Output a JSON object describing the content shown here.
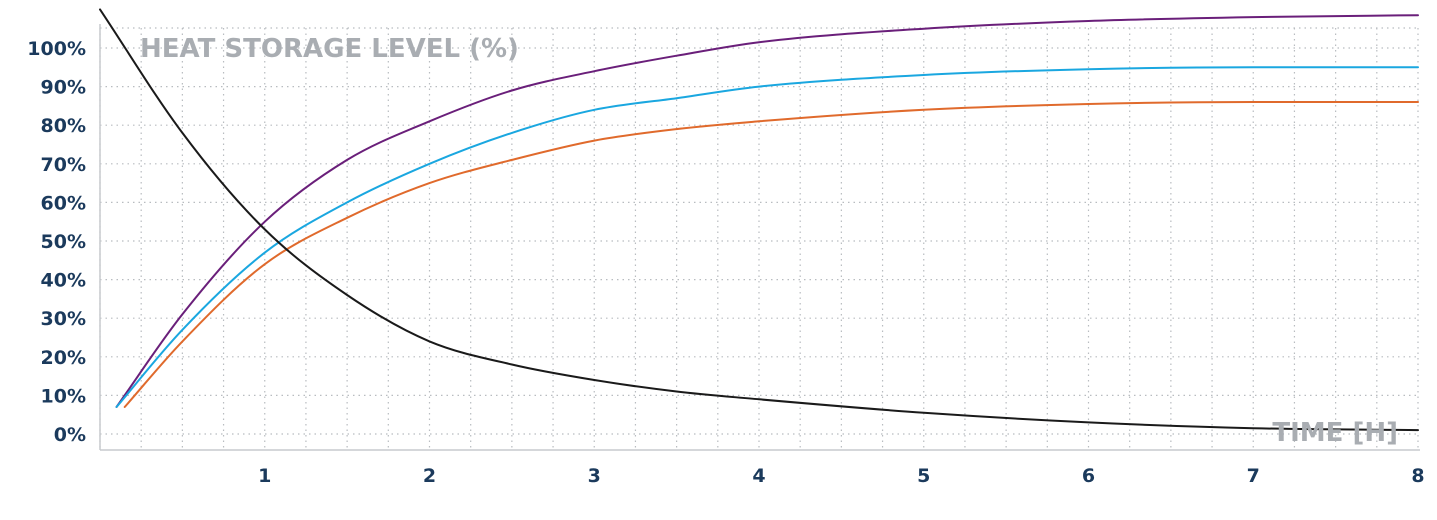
{
  "chart_data": {
    "type": "line",
    "title": "HEAT STORAGE LEVEL (%)",
    "xlabel": "TIME [H]",
    "ylabel": "",
    "x_ticks": [
      "1",
      "2",
      "3",
      "4",
      "5",
      "6",
      "7",
      "8"
    ],
    "y_ticks": [
      "0%",
      "10%",
      "20%",
      "30%",
      "40%",
      "50%",
      "60%",
      "70%",
      "80%",
      "90%",
      "100%"
    ],
    "xlim": [
      0,
      8
    ],
    "ylim": [
      0,
      105
    ],
    "grid": true,
    "legend": "none",
    "series": [
      {
        "color": "#6a1f7a",
        "x": [
          0.1,
          0.5,
          1,
          1.5,
          2,
          2.5,
          3,
          3.5,
          4,
          5,
          6,
          7,
          8
        ],
        "values": [
          7,
          31,
          55,
          71,
          81,
          89,
          94,
          98,
          101.5,
          105,
          107,
          108,
          108.5
        ]
      },
      {
        "color": "#1aa7e0",
        "x": [
          0.1,
          0.5,
          1,
          1.5,
          2,
          2.5,
          3,
          3.5,
          4,
          5,
          6,
          7,
          8
        ],
        "values": [
          7,
          27,
          47,
          60,
          70,
          78,
          84,
          87,
          90,
          93,
          94.5,
          95,
          95
        ]
      },
      {
        "color": "#e06a2c",
        "x": [
          0.15,
          0.5,
          1,
          1.5,
          2,
          2.5,
          3,
          3.5,
          4,
          5,
          6,
          7,
          8
        ],
        "values": [
          7,
          24,
          44,
          56,
          65,
          71,
          76,
          79,
          81,
          84,
          85.5,
          86,
          86
        ]
      },
      {
        "color": "#1a1a1a",
        "x": [
          0,
          0.5,
          1,
          1.5,
          2,
          2.5,
          3,
          3.5,
          4,
          5,
          6,
          7,
          8
        ],
        "values": [
          110,
          78,
          53,
          36,
          24,
          18,
          14,
          11,
          9,
          5.5,
          3,
          1.5,
          1
        ]
      }
    ]
  }
}
